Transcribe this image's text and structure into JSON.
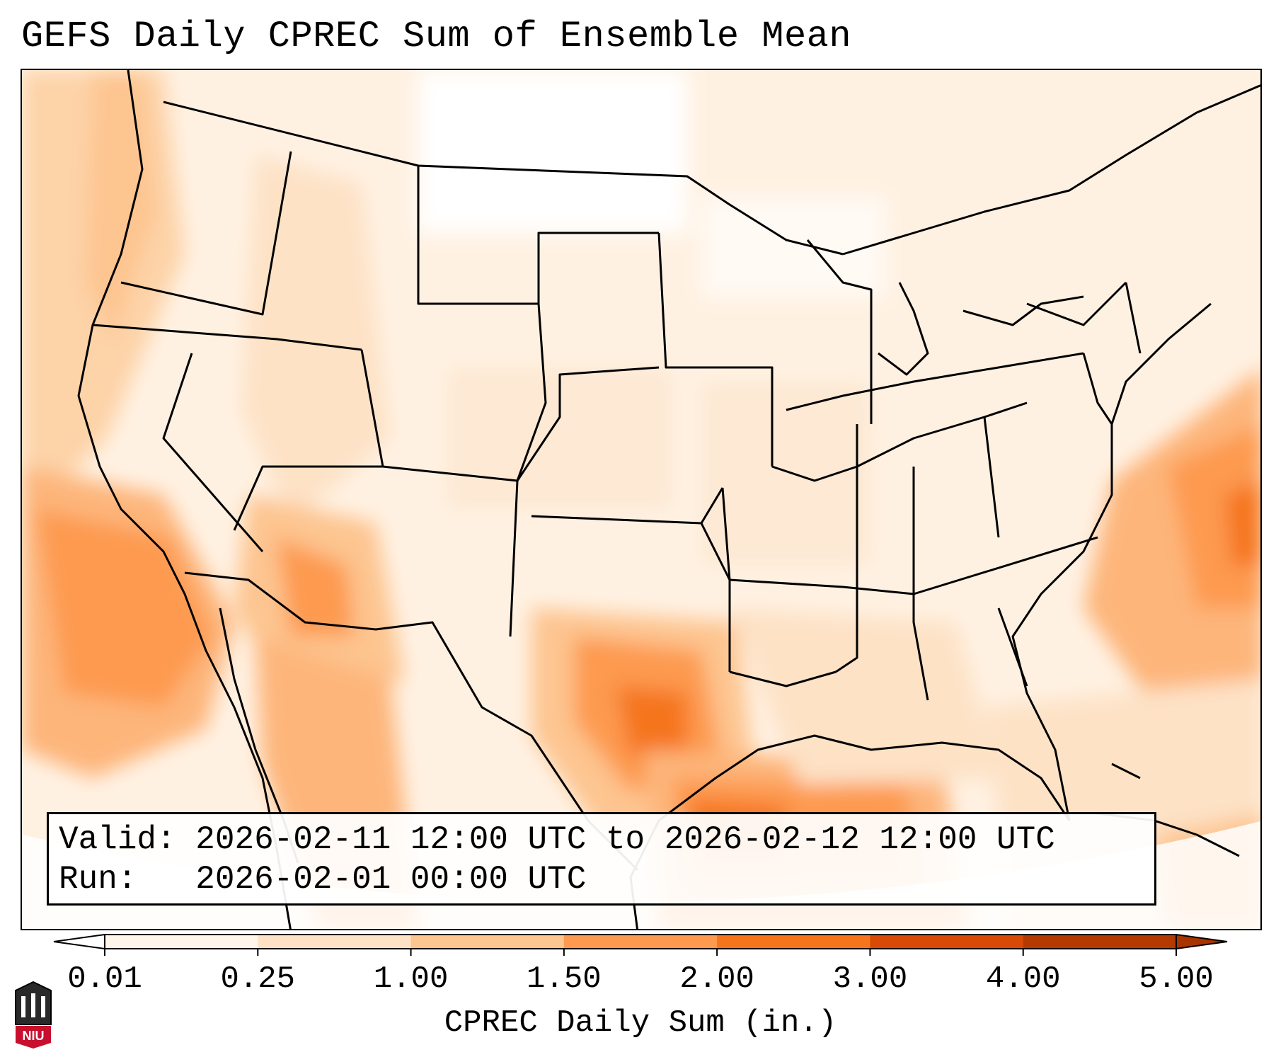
{
  "title": "GEFS Daily CPREC Sum of Ensemble Mean",
  "info": {
    "valid_label": "Valid:",
    "valid_value": "2026-02-11 12:00 UTC to 2026-02-12 12:00 UTC",
    "run_label": "Run:",
    "run_value": "2026-02-01 00:00 UTC"
  },
  "colorbar": {
    "title": "CPREC Daily Sum (in.)",
    "ticks": [
      "0.01",
      "0.25",
      "1.00",
      "1.50",
      "2.00",
      "3.00",
      "4.00",
      "5.00"
    ],
    "colors": [
      "#fff5eb",
      "#fde2c6",
      "#fdc590",
      "#fd9a4f",
      "#f5751d",
      "#d84a05",
      "#b43a02"
    ],
    "extend": "both"
  },
  "logo": {
    "text": "NIU",
    "name": "niu-logo-icon",
    "color": "#c8102e"
  }
}
